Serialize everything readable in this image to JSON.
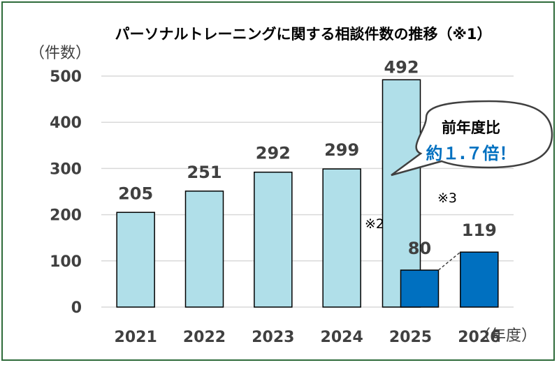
{
  "chart_data": {
    "type": "bar",
    "title": "パーソナルトレーニングに関する相談件数の推移（※1）",
    "ylabel": "（件数）",
    "xlabel": "（年度）",
    "ylim": [
      0,
      500
    ],
    "yticks": [
      0,
      100,
      200,
      300,
      400,
      500
    ],
    "grid": true,
    "categories": [
      "2021",
      "2022",
      "2023",
      "2024",
      "2025",
      "2026"
    ],
    "series": [
      {
        "values": [
          205,
          251,
          292,
          299,
          492,
          null
        ],
        "color": "#b0dfe9"
      },
      {
        "values": [
          null,
          null,
          null,
          null,
          80,
          119
        ],
        "color": "#0070c0"
      }
    ],
    "annotations": {
      "note_2025": "※2",
      "note_2026": "※3",
      "callout_line1": "前年度比",
      "callout_line2": "約１.７倍！"
    }
  },
  "colors": {
    "frame": "#2e6b3a",
    "light_bar": "#b0dfe9",
    "dark_bar": "#0070c0",
    "text": "#404040",
    "callout_accent": "#0070c0"
  }
}
